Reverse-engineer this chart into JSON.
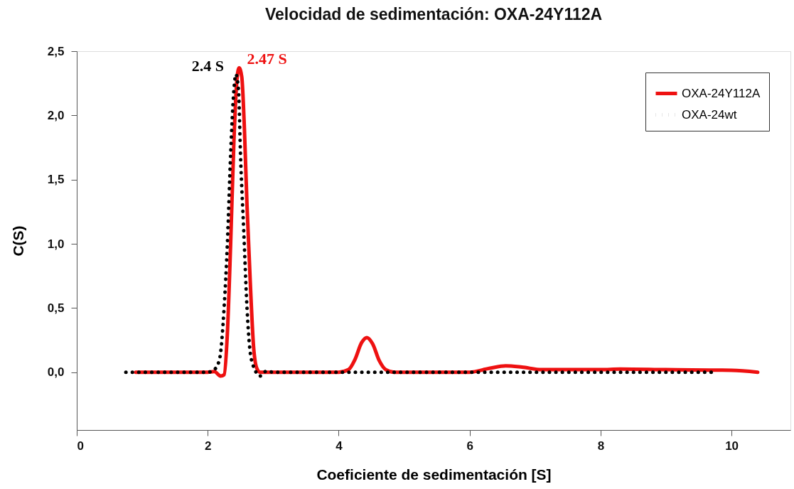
{
  "chart_data": {
    "type": "line",
    "title": "Velocidad de sedimentación: OXA-24Y112A",
    "xlabel": "Coeficiente de sedimentación [S]",
    "ylabel": "C(S)",
    "series": [
      {
        "name": "OXA-24Y112A",
        "color": "#ee1111",
        "line_style": "solid",
        "x": [
          0.9,
          1.5,
          2.0,
          2.1,
          2.2,
          2.25,
          2.3,
          2.35,
          2.4,
          2.45,
          2.48,
          2.52,
          2.56,
          2.6,
          2.65,
          2.7,
          2.75,
          2.8,
          3.0,
          4.0,
          4.15,
          4.25,
          4.35,
          4.43,
          4.52,
          4.62,
          4.72,
          4.85,
          6.0,
          6.3,
          6.55,
          6.8,
          7.1,
          8.0,
          8.3,
          9.0,
          10.0,
          10.4
        ],
        "values": [
          0,
          0,
          0,
          0.005,
          -0.03,
          -0.02,
          0.3,
          1.0,
          1.8,
          2.3,
          2.37,
          2.3,
          1.9,
          1.3,
          0.7,
          0.2,
          0.03,
          0,
          0,
          0,
          0.02,
          0.1,
          0.23,
          0.27,
          0.22,
          0.09,
          0.02,
          0,
          0,
          0.03,
          0.05,
          0.04,
          0.02,
          0.02,
          0.025,
          0.02,
          0.015,
          0
        ]
      },
      {
        "name": "OXA-24wt",
        "color": "#000000",
        "line_style": "dotted",
        "x": [
          0.75,
          2.0,
          2.1,
          2.18,
          2.25,
          2.3,
          2.35,
          2.4,
          2.43,
          2.47,
          2.5,
          2.55,
          2.6,
          2.65,
          2.72,
          2.8,
          2.9,
          3.0,
          9.75
        ],
        "values": [
          0,
          0,
          0.02,
          0.1,
          0.5,
          1.0,
          1.7,
          2.2,
          2.32,
          2.2,
          1.7,
          1.1,
          0.5,
          0.15,
          0.02,
          -0.03,
          0.01,
          0,
          0
        ]
      }
    ],
    "annotations": [
      {
        "text": "2.47 S",
        "x": 2.47,
        "y": 2.37
      },
      {
        "text": "2.4 S",
        "x": 2.4,
        "y": 2.32
      }
    ],
    "xlim": [
      0,
      10.9
    ],
    "xticks": [
      0,
      2,
      4,
      6,
      8,
      10
    ],
    "ylim": [
      -0.45,
      2.5
    ],
    "yticks": [
      {
        "value": 0,
        "label": "0,0"
      },
      {
        "value": 0.5,
        "label": "0,5"
      },
      {
        "value": 1,
        "label": "1,0"
      },
      {
        "value": 1.5,
        "label": "1,5"
      },
      {
        "value": 2,
        "label": "2,0"
      },
      {
        "value": 2.5,
        "label": "2,5"
      }
    ],
    "grid": false,
    "legend": "top right",
    "marker": "none"
  }
}
